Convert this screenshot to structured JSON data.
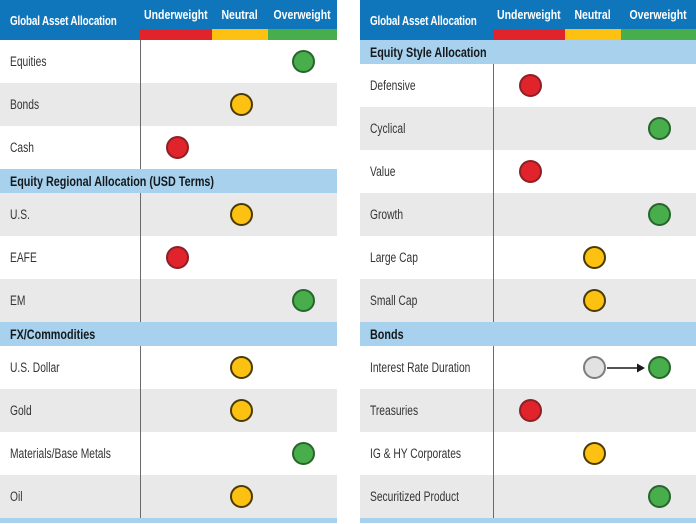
{
  "columns_keys": [
    "underweight",
    "neutral",
    "overweight"
  ],
  "colors": {
    "header_blue": "#0f76bc",
    "section_blue": "#a7d1ec",
    "row_gray": "#e9e9e9",
    "divider_gray": "#6a6a6a",
    "text_dark": "#343434",
    "header_text": "#ffffff",
    "arrow_black": "#1a1a1a"
  },
  "marker_colors": {
    "red": {
      "fill": "#e1232b",
      "border": "#8c2026"
    },
    "yellow": {
      "fill": "#fdc112",
      "border": "#4a3b06"
    },
    "green": {
      "fill": "#48ae4b",
      "border": "#29642d"
    },
    "gray": {
      "fill": "#e2e2e2",
      "border": "#7d7d7d"
    }
  },
  "chart_data": [
    {
      "type": "table",
      "title": "Global Asset Allocation",
      "columns": [
        "Underweight",
        "Neutral",
        "Overweight"
      ],
      "items": [
        {
          "kind": "row",
          "label": "Equities",
          "rating": "overweight",
          "marker": "green"
        },
        {
          "kind": "row",
          "label": "Bonds",
          "rating": "neutral",
          "marker": "yellow"
        },
        {
          "kind": "row",
          "label": "Cash",
          "rating": "underweight",
          "marker": "red"
        },
        {
          "kind": "section",
          "label": "Equity Regional Allocation (USD Terms)"
        },
        {
          "kind": "row",
          "label": "U.S.",
          "rating": "neutral",
          "marker": "yellow"
        },
        {
          "kind": "row",
          "label": "EAFE",
          "rating": "underweight",
          "marker": "red"
        },
        {
          "kind": "row",
          "label": "EM",
          "rating": "overweight",
          "marker": "green"
        },
        {
          "kind": "section",
          "label": "FX/Commodities"
        },
        {
          "kind": "row",
          "label": "U.S. Dollar",
          "rating": "neutral",
          "marker": "yellow"
        },
        {
          "kind": "row",
          "label": "Gold",
          "rating": "neutral",
          "marker": "yellow"
        },
        {
          "kind": "row",
          "label": "Materials/Base Metals",
          "rating": "overweight",
          "marker": "green"
        },
        {
          "kind": "row",
          "label": "Oil",
          "rating": "neutral",
          "marker": "yellow"
        }
      ]
    },
    {
      "type": "table",
      "title": "Global Asset Allocation",
      "columns": [
        "Underweight",
        "Neutral",
        "Overweight"
      ],
      "items": [
        {
          "kind": "section",
          "label": "Equity Style Allocation"
        },
        {
          "kind": "row",
          "label": "Defensive",
          "rating": "underweight",
          "marker": "red"
        },
        {
          "kind": "row",
          "label": "Cyclical",
          "rating": "overweight",
          "marker": "green"
        },
        {
          "kind": "row",
          "label": "Value",
          "rating": "underweight",
          "marker": "red"
        },
        {
          "kind": "row",
          "label": "Growth",
          "rating": "overweight",
          "marker": "green"
        },
        {
          "kind": "row",
          "label": "Large Cap",
          "rating": "neutral",
          "marker": "yellow"
        },
        {
          "kind": "row",
          "label": "Small Cap",
          "rating": "neutral",
          "marker": "yellow"
        },
        {
          "kind": "section",
          "label": "Bonds"
        },
        {
          "kind": "row",
          "label": "Interest Rate Duration",
          "rating": "overweight",
          "marker": "green",
          "previous": {
            "rating": "neutral",
            "marker": "gray"
          },
          "arrow": true
        },
        {
          "kind": "row",
          "label": "Treasuries",
          "rating": "underweight",
          "marker": "red"
        },
        {
          "kind": "row",
          "label": "IG & HY Corporates",
          "rating": "neutral",
          "marker": "yellow"
        },
        {
          "kind": "row",
          "label": "Securitized Product",
          "rating": "overweight",
          "marker": "green"
        }
      ]
    }
  ]
}
